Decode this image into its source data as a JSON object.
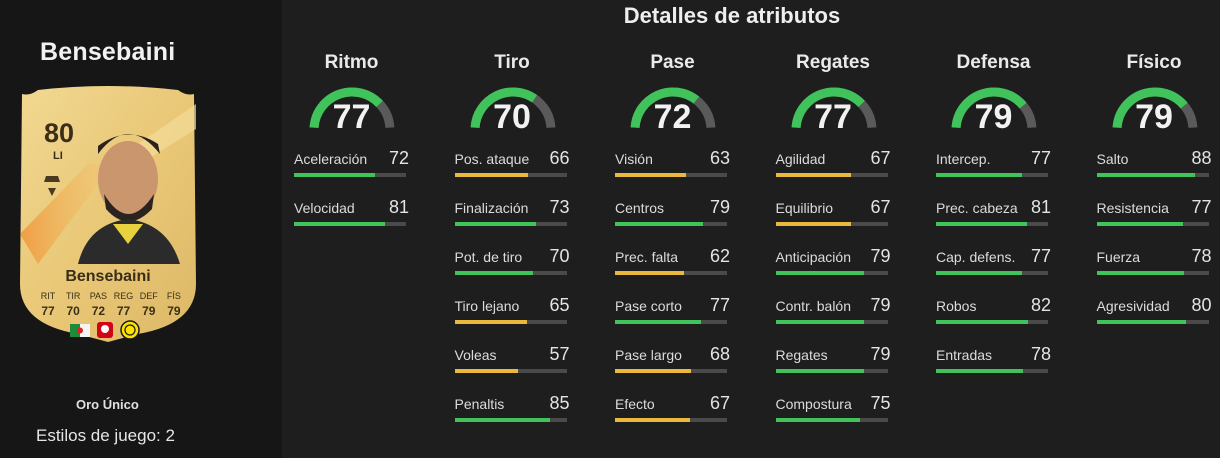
{
  "player": {
    "name": "Bensebaini",
    "card_name": "Bensebaini",
    "rating": "80",
    "position": "LI",
    "card_type": "Oro Único",
    "playstyles": "Estilos de juego: 2",
    "mini_stats": [
      {
        "label": "RIT",
        "value": "77"
      },
      {
        "label": "TIR",
        "value": "70"
      },
      {
        "label": "PAS",
        "value": "72"
      },
      {
        "label": "REG",
        "value": "77"
      },
      {
        "label": "DEF",
        "value": "79"
      },
      {
        "label": "FÍS",
        "value": "79"
      }
    ]
  },
  "section_title": "Detalles de atributos",
  "colors": {
    "green": "#3fc35a",
    "yellow": "#e9b83c",
    "track": "#4a4a4a",
    "gauge_track": "#5a5a5a"
  },
  "categories": [
    {
      "name": "Ritmo",
      "value": 77,
      "value_text": "77",
      "stats": [
        {
          "name": "Aceleración",
          "value": 72,
          "value_text": "72"
        },
        {
          "name": "Velocidad",
          "value": 81,
          "value_text": "81"
        }
      ]
    },
    {
      "name": "Tiro",
      "value": 70,
      "value_text": "70",
      "stats": [
        {
          "name": "Pos. ataque",
          "value": 66,
          "value_text": "66"
        },
        {
          "name": "Finalización",
          "value": 73,
          "value_text": "73"
        },
        {
          "name": "Pot. de tiro",
          "value": 70,
          "value_text": "70"
        },
        {
          "name": "Tiro lejano",
          "value": 65,
          "value_text": "65"
        },
        {
          "name": "Voleas",
          "value": 57,
          "value_text": "57"
        },
        {
          "name": "Penaltis",
          "value": 85,
          "value_text": "85"
        }
      ]
    },
    {
      "name": "Pase",
      "value": 72,
      "value_text": "72",
      "stats": [
        {
          "name": "Visión",
          "value": 63,
          "value_text": "63"
        },
        {
          "name": "Centros",
          "value": 79,
          "value_text": "79"
        },
        {
          "name": "Prec. falta",
          "value": 62,
          "value_text": "62"
        },
        {
          "name": "Pase corto",
          "value": 77,
          "value_text": "77"
        },
        {
          "name": "Pase largo",
          "value": 68,
          "value_text": "68"
        },
        {
          "name": "Efecto",
          "value": 67,
          "value_text": "67"
        }
      ]
    },
    {
      "name": "Regates",
      "value": 77,
      "value_text": "77",
      "stats": [
        {
          "name": "Agilidad",
          "value": 67,
          "value_text": "67"
        },
        {
          "name": "Equilibrio",
          "value": 67,
          "value_text": "67"
        },
        {
          "name": "Anticipación",
          "value": 79,
          "value_text": "79"
        },
        {
          "name": "Contr. balón",
          "value": 79,
          "value_text": "79"
        },
        {
          "name": "Regates",
          "value": 79,
          "value_text": "79"
        },
        {
          "name": "Compostura",
          "value": 75,
          "value_text": "75"
        }
      ]
    },
    {
      "name": "Defensa",
      "value": 79,
      "value_text": "79",
      "stats": [
        {
          "name": "Intercep.",
          "value": 77,
          "value_text": "77"
        },
        {
          "name": "Prec. cabeza",
          "value": 81,
          "value_text": "81"
        },
        {
          "name": "Cap. defens.",
          "value": 77,
          "value_text": "77"
        },
        {
          "name": "Robos",
          "value": 82,
          "value_text": "82"
        },
        {
          "name": "Entradas",
          "value": 78,
          "value_text": "78"
        }
      ]
    },
    {
      "name": "Físico",
      "value": 79,
      "value_text": "79",
      "stats": [
        {
          "name": "Salto",
          "value": 88,
          "value_text": "88"
        },
        {
          "name": "Resistencia",
          "value": 77,
          "value_text": "77"
        },
        {
          "name": "Fuerza",
          "value": 78,
          "value_text": "78"
        },
        {
          "name": "Agresividad",
          "value": 80,
          "value_text": "80"
        }
      ]
    }
  ]
}
